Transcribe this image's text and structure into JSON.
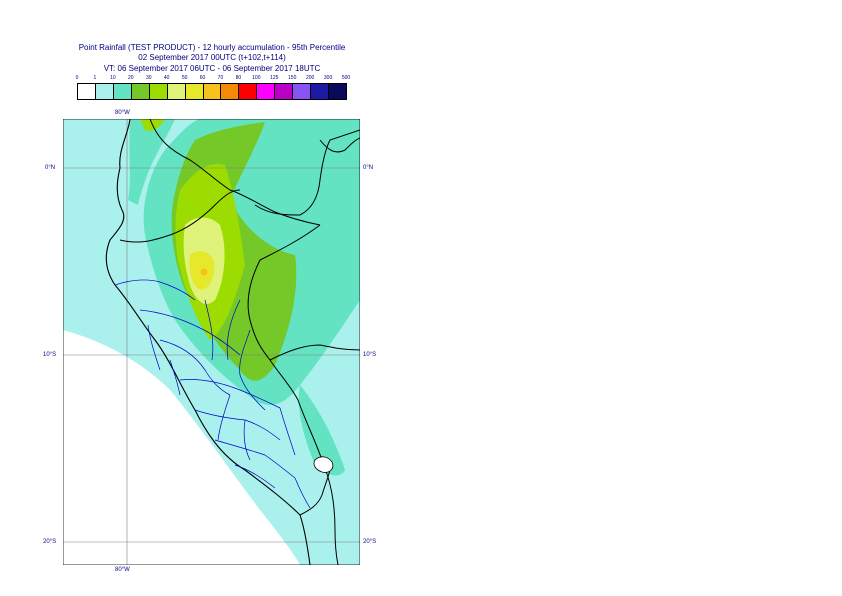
{
  "header": {
    "title": "Point Rainfall (TEST PRODUCT) - 12 hourly accumulation - 95th Percentile",
    "base_time": "02 September 2017 00UTC (t+102,t+114)",
    "valid_time": "VT: 06 September 2017 06UTC - 06 September 2017 18UTC"
  },
  "legend": {
    "ticks": [
      "0",
      "1",
      "10",
      "20",
      "30",
      "40",
      "50",
      "60",
      "70",
      "80",
      "100",
      "125",
      "150",
      "200",
      "300",
      "500"
    ],
    "colors": [
      "#ffffff",
      "#aaf0ec",
      "#63e3c2",
      "#74c928",
      "#9ddc00",
      "#dff27a",
      "#e5e82b",
      "#f7c21b",
      "#f58b04",
      "#ff0000",
      "#ff00ff",
      "#b800c7",
      "#8a54f5",
      "#1c1ba6",
      "#0a0a5c"
    ]
  },
  "axes": {
    "lon_top": "80°W",
    "lon_bottom": "80°W",
    "lat_right": [
      "0°N",
      "10°S",
      "20°S"
    ],
    "lat_left": [
      "0°N",
      "10°S",
      "20°S"
    ]
  },
  "map_colors": {
    "ocean": "#aaf0ec",
    "ocean_dry": "#ffffff",
    "moderate": "#63e3c2",
    "heavy": "#74c928",
    "heavier": "#9ddc00",
    "light_yellow": "#dff27a",
    "yellow": "#e5e82b",
    "orange": "#f7c21b",
    "country_border": "#000000",
    "region_border": "#0000cc",
    "grid": "#808080"
  }
}
